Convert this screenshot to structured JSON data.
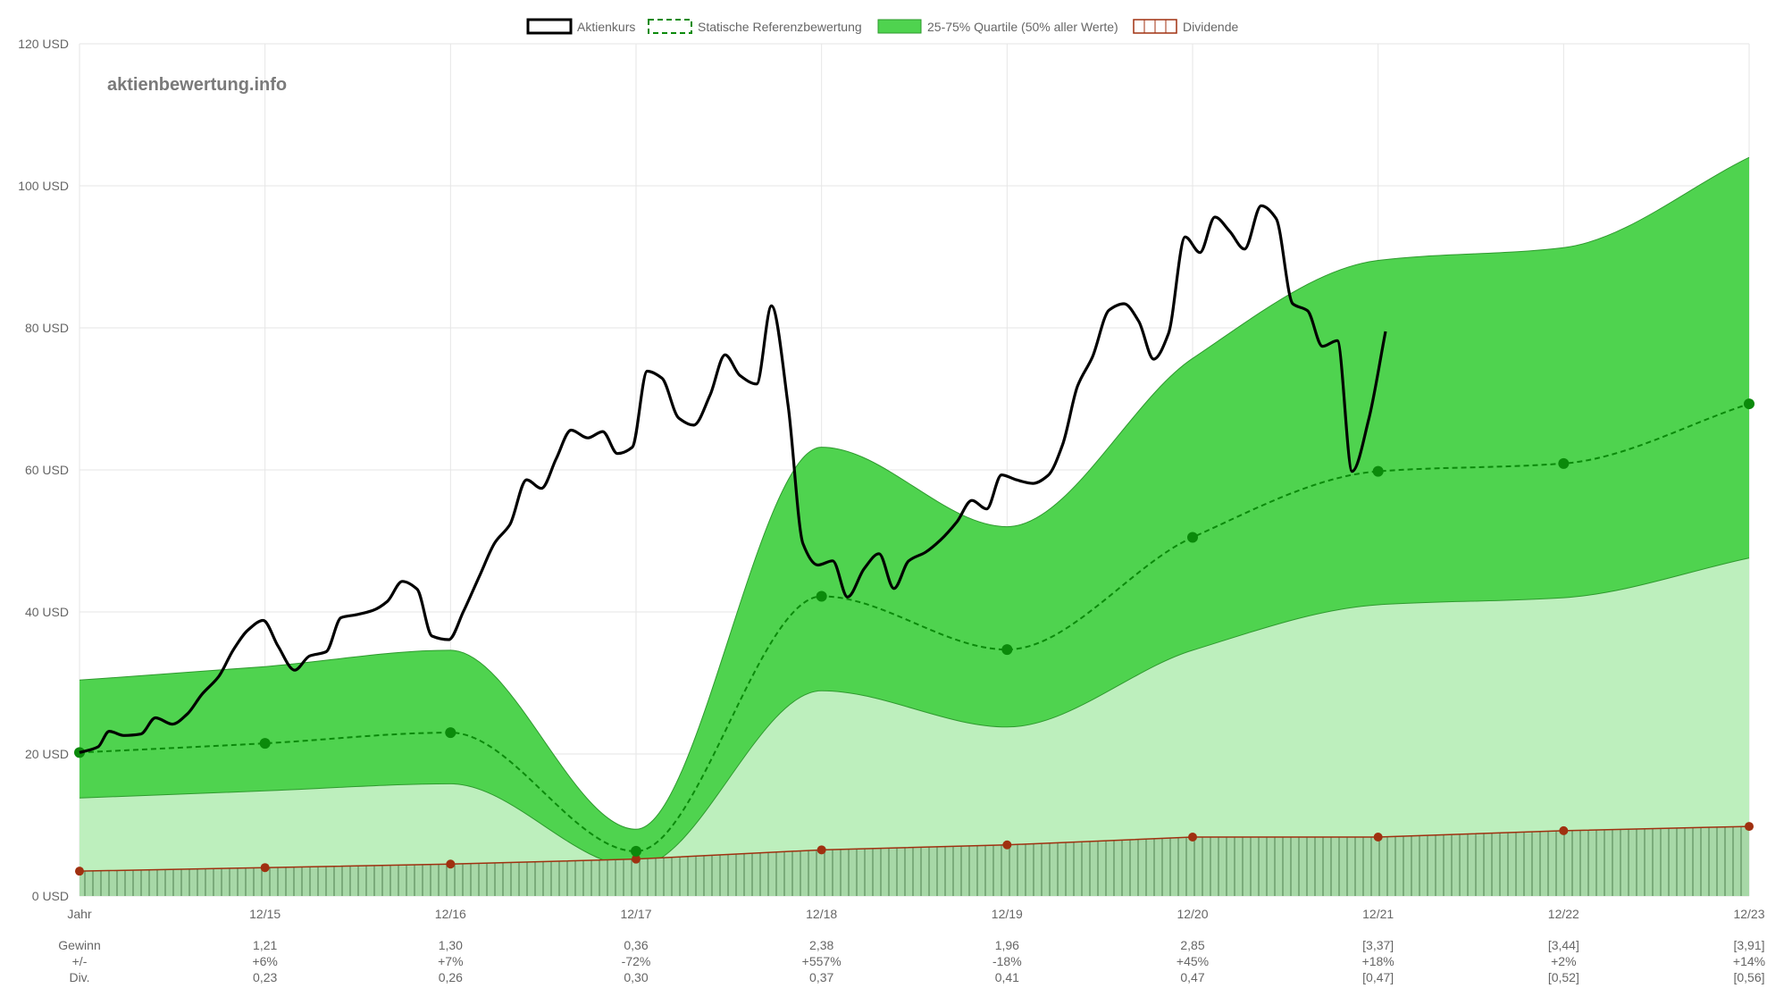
{
  "watermark": "aktienbewertung.info",
  "legend": {
    "price": "Aktienkurs",
    "reference": "Statische Referenzbewertung",
    "quartile": "25-75% Quartile (50% aller Werte)",
    "dividend": "Dividende"
  },
  "colors": {
    "price": "#000000",
    "reference": "#0b8a0b",
    "band_dark": "#4fd34f",
    "band_light": "#bdefbd",
    "band_border": "#2e9a2e",
    "dividend": "#a03010",
    "dividend_fill": "#a7d8a7",
    "grid": "#e6e6e6"
  },
  "chart_data": {
    "type": "line",
    "y_unit": "USD",
    "ylim": [
      0,
      120
    ],
    "y_ticks": [
      "0 USD",
      "20 USD",
      "40 USD",
      "60 USD",
      "80 USD",
      "100 USD",
      "120 USD"
    ],
    "y_tick_values": [
      0,
      20,
      40,
      60,
      80,
      100,
      120
    ],
    "x_ticks": [
      "Jahr",
      "12/15",
      "12/16",
      "12/17",
      "12/18",
      "12/19",
      "12/20",
      "12/21",
      "12/22",
      "12/23"
    ],
    "grid": true,
    "legend_position": "top",
    "reference": [
      20.2,
      21.5,
      23.0,
      6.3,
      42.2,
      34.7,
      50.5,
      59.8,
      60.9,
      69.3
    ],
    "quartile_upper": [
      30.4,
      32.3,
      34.6,
      9.4,
      63.2,
      52.0,
      75.7,
      89.5,
      91.3,
      104.0
    ],
    "quartile_lower": [
      13.8,
      14.8,
      15.8,
      4.1,
      28.9,
      23.8,
      34.6,
      41.0,
      42.0,
      47.6
    ],
    "dividend": [
      3.5,
      4.0,
      4.5,
      5.2,
      6.5,
      7.2,
      8.3,
      8.3,
      9.2,
      9.8
    ],
    "price": [
      [
        0.0,
        20.2
      ],
      [
        0.1,
        21.0
      ],
      [
        0.16,
        23.2
      ],
      [
        0.24,
        22.6
      ],
      [
        0.33,
        22.8
      ],
      [
        0.41,
        25.1
      ],
      [
        0.5,
        24.2
      ],
      [
        0.58,
        25.6
      ],
      [
        0.66,
        28.4
      ],
      [
        0.75,
        30.9
      ],
      [
        0.83,
        34.7
      ],
      [
        0.91,
        37.5
      ],
      [
        0.99,
        38.8
      ],
      [
        1.07,
        35.2
      ],
      [
        1.16,
        31.8
      ],
      [
        1.24,
        33.8
      ],
      [
        1.33,
        34.4
      ],
      [
        1.41,
        39.2
      ],
      [
        1.49,
        39.6
      ],
      [
        1.58,
        40.2
      ],
      [
        1.66,
        41.5
      ],
      [
        1.74,
        44.3
      ],
      [
        1.82,
        43.2
      ],
      [
        1.9,
        36.6
      ],
      [
        1.99,
        36.1
      ],
      [
        2.07,
        40.1
      ],
      [
        2.16,
        45.3
      ],
      [
        2.24,
        49.8
      ],
      [
        2.32,
        52.3
      ],
      [
        2.41,
        58.6
      ],
      [
        2.49,
        57.4
      ],
      [
        2.57,
        61.6
      ],
      [
        2.65,
        65.6
      ],
      [
        2.74,
        64.5
      ],
      [
        2.82,
        65.4
      ],
      [
        2.9,
        62.3
      ],
      [
        2.98,
        63.2
      ],
      [
        3.06,
        73.9
      ],
      [
        3.14,
        72.9
      ],
      [
        3.23,
        67.3
      ],
      [
        3.31,
        66.3
      ],
      [
        3.4,
        70.6
      ],
      [
        3.48,
        76.2
      ],
      [
        3.56,
        73.3
      ],
      [
        3.65,
        72.1
      ],
      [
        3.73,
        83.1
      ],
      [
        3.82,
        69.0
      ],
      [
        3.9,
        49.6
      ],
      [
        3.98,
        46.6
      ],
      [
        4.06,
        47.2
      ],
      [
        4.14,
        42.1
      ],
      [
        4.23,
        46.1
      ],
      [
        4.31,
        48.2
      ],
      [
        4.39,
        43.3
      ],
      [
        4.47,
        47.2
      ],
      [
        4.56,
        48.4
      ],
      [
        4.64,
        50.1
      ],
      [
        4.73,
        52.7
      ],
      [
        4.81,
        55.7
      ],
      [
        4.89,
        54.5
      ],
      [
        4.97,
        59.3
      ],
      [
        5.05,
        58.6
      ],
      [
        5.14,
        58.1
      ],
      [
        5.22,
        59.2
      ],
      [
        5.3,
        63.6
      ],
      [
        5.38,
        71.8
      ],
      [
        5.46,
        75.9
      ],
      [
        5.55,
        82.5
      ],
      [
        5.63,
        83.4
      ],
      [
        5.71,
        80.9
      ],
      [
        5.79,
        75.6
      ],
      [
        5.87,
        79.2
      ],
      [
        5.96,
        92.8
      ],
      [
        6.04,
        90.6
      ],
      [
        6.12,
        95.6
      ],
      [
        6.2,
        93.6
      ],
      [
        6.28,
        91.1
      ],
      [
        6.37,
        97.2
      ],
      [
        6.45,
        95.4
      ],
      [
        6.54,
        83.4
      ],
      [
        6.62,
        82.4
      ],
      [
        6.7,
        77.4
      ],
      [
        6.78,
        78.2
      ],
      [
        6.86,
        59.8
      ],
      [
        6.95,
        67.2
      ],
      [
        7.04,
        79.5
      ]
    ]
  },
  "table": {
    "row_labels": [
      "Gewinn",
      "+/-",
      "Div."
    ],
    "columns": [
      [
        "",
        "",
        ""
      ],
      [
        "1,21",
        "+6%",
        "0,23"
      ],
      [
        "1,30",
        "+7%",
        "0,26"
      ],
      [
        "0,36",
        "-72%",
        "0,30"
      ],
      [
        "2,38",
        "+557%",
        "0,37"
      ],
      [
        "1,96",
        "-18%",
        "0,41"
      ],
      [
        "2,85",
        "+45%",
        "0,47"
      ],
      [
        "[3,37]",
        "+18%",
        "[0,47]"
      ],
      [
        "[3,44]",
        "+2%",
        "[0,52]"
      ],
      [
        "[3,91]",
        "+14%",
        "[0,56]"
      ]
    ]
  }
}
